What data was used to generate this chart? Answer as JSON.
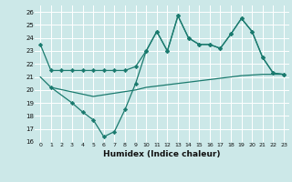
{
  "xlabel": "Humidex (Indice chaleur)",
  "background_color": "#cce8e8",
  "line_color": "#1a7a6e",
  "xlim": [
    -0.5,
    23.5
  ],
  "ylim": [
    16,
    26.5
  ],
  "yticks": [
    16,
    17,
    18,
    19,
    20,
    21,
    22,
    23,
    24,
    25,
    26
  ],
  "xticks": [
    0,
    1,
    2,
    3,
    4,
    5,
    6,
    7,
    8,
    9,
    10,
    11,
    12,
    13,
    14,
    15,
    16,
    17,
    18,
    19,
    20,
    21,
    22,
    23
  ],
  "line1_x": [
    0,
    1,
    2,
    3,
    4,
    5,
    6,
    7,
    8,
    9,
    10,
    11,
    12,
    13,
    14,
    15,
    16,
    17,
    18,
    19,
    20,
    21,
    22,
    23
  ],
  "line1_y": [
    23.5,
    21.5,
    21.5,
    21.5,
    21.5,
    21.5,
    21.5,
    21.5,
    21.5,
    21.8,
    23.0,
    24.5,
    23.0,
    25.7,
    24.0,
    23.5,
    23.5,
    23.2,
    24.3,
    25.5,
    24.5,
    22.5,
    21.3,
    21.2
  ],
  "line2_x": [
    1,
    3,
    4,
    5,
    6,
    7,
    8,
    9,
    10,
    11,
    12,
    13,
    14,
    15,
    16,
    17,
    18,
    19,
    20,
    21,
    22,
    23
  ],
  "line2_y": [
    20.2,
    19.0,
    18.3,
    17.7,
    16.4,
    16.8,
    18.5,
    20.5,
    23.0,
    24.5,
    23.0,
    25.7,
    24.0,
    23.5,
    23.5,
    23.2,
    24.3,
    25.5,
    24.5,
    22.5,
    21.3,
    21.2
  ],
  "line3_x": [
    0,
    1,
    5,
    9,
    10,
    11,
    12,
    13,
    14,
    15,
    16,
    17,
    18,
    19,
    20,
    21,
    22,
    23
  ],
  "line3_y": [
    21.0,
    20.2,
    19.5,
    20.0,
    20.2,
    20.3,
    20.4,
    20.5,
    20.6,
    20.7,
    20.8,
    20.9,
    21.0,
    21.1,
    21.15,
    21.2,
    21.2,
    21.2
  ]
}
